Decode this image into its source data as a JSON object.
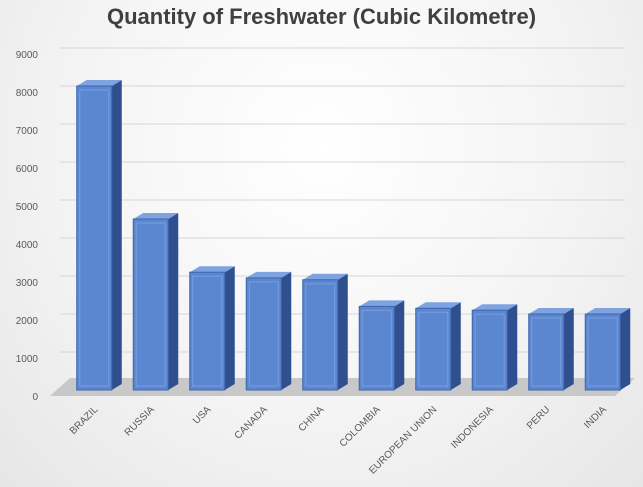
{
  "chart_data": {
    "type": "bar",
    "title": "Quantity of Freshwater (Cubic Kilometre)",
    "xlabel": "",
    "ylabel": "",
    "categories": [
      "BRAZIL",
      "RUSSIA",
      "USA",
      "CANADA",
      "CHINA",
      "COLOMBIA",
      "EUROPEAN UNION",
      "INDONESIA",
      "PERU",
      "INDIA"
    ],
    "values": [
      8000,
      4500,
      3100,
      2950,
      2900,
      2200,
      2150,
      2100,
      2000,
      2000
    ],
    "ylim": [
      0,
      9000
    ],
    "yticks": [
      0,
      1000,
      2000,
      3000,
      4000,
      5000,
      6000,
      7000,
      8000,
      9000
    ],
    "grid": true,
    "legend": "none",
    "style": "3d-column",
    "colors": {
      "bar_front": "#5b87d1",
      "bar_side": "#2f4f8f",
      "bar_top": "#7ea3e0",
      "floor": "#c8c8c8"
    }
  }
}
